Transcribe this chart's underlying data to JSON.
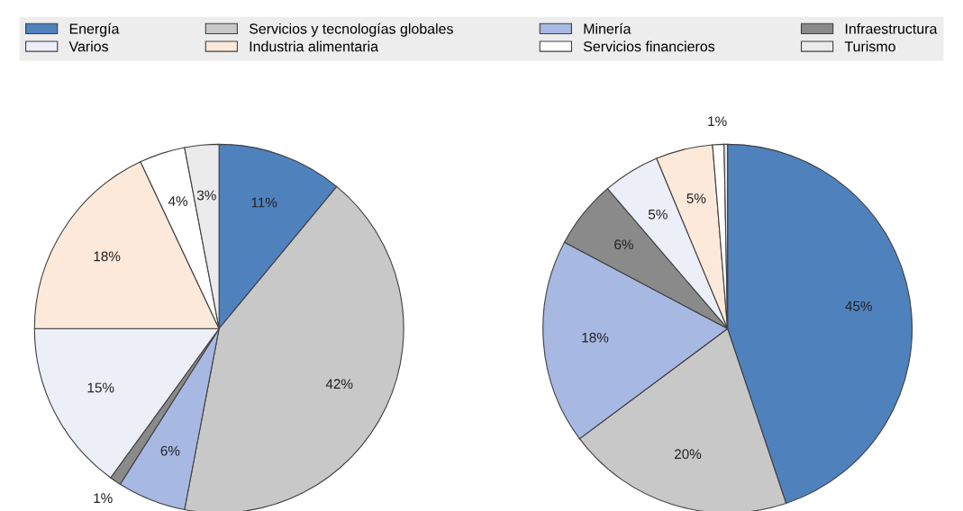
{
  "chart_data": [
    {
      "type": "pie",
      "legend": "top",
      "categories": [
        "Energía",
        "Servicios y tecnologías globales",
        "Minería",
        "Infraestructura",
        "Varios",
        "Industria alimentaria",
        "Servicios financieros",
        "Turismo"
      ],
      "values": [
        11,
        42,
        6,
        1,
        15,
        18,
        4,
        3
      ],
      "value_labels": [
        "11%",
        "42%",
        "6%",
        "1%",
        "15%",
        "18%",
        "4%",
        "3%"
      ],
      "colors": [
        "#4f81bd",
        "#c8c8c8",
        "#a7b8e2",
        "#8a8a8a",
        "#eceff8",
        "#fde9d9",
        "#ffffff",
        "#ebebeb"
      ]
    },
    {
      "type": "pie",
      "categories": [
        null,
        null,
        null,
        null,
        null,
        null,
        null,
        null
      ],
      "values": [
        45,
        20,
        18,
        6,
        5,
        5,
        1,
        0.3
      ],
      "value_labels": [
        "45%",
        "20%",
        "18%",
        "6%",
        "5%",
        "5%",
        "1%",
        null
      ],
      "colors": [
        "#4f81bd",
        "#c8c8c8",
        "#a7b8e2",
        "#8a8a8a",
        "#eceff8",
        "#fde9d9",
        "#ffffff",
        "#ebebeb"
      ]
    }
  ]
}
